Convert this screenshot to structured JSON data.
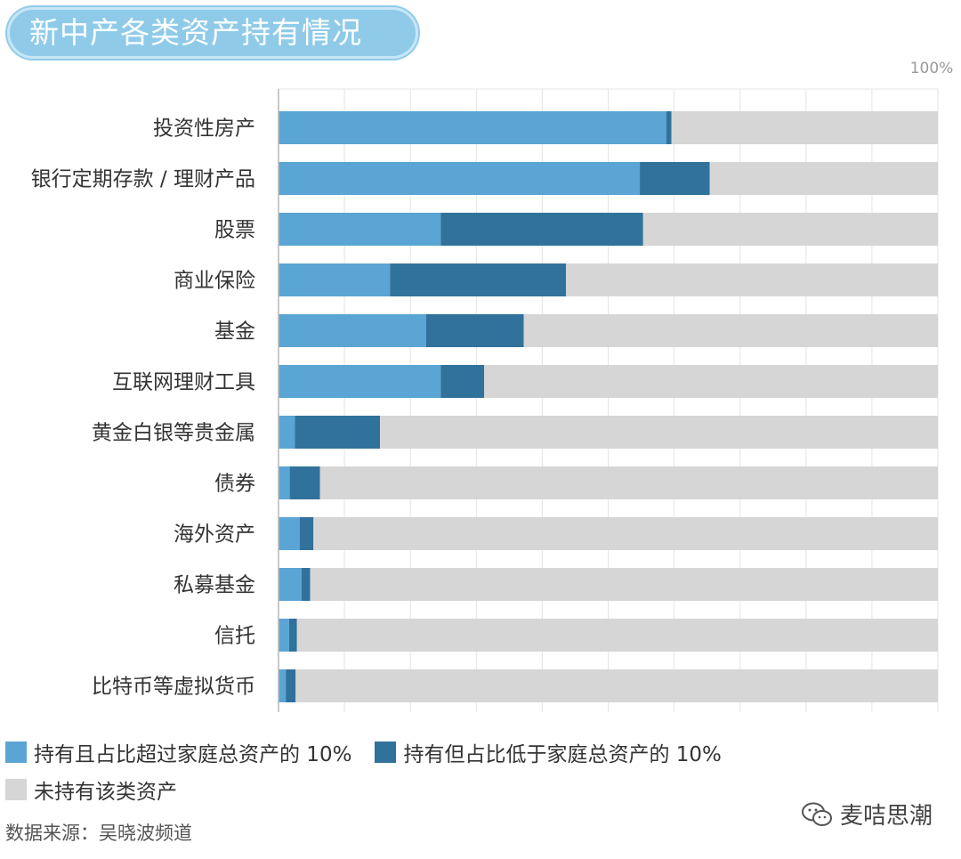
{
  "header": {
    "title": "新中产各类资产持有情况"
  },
  "chart_data": {
    "type": "bar",
    "orientation": "horizontal",
    "stacked": true,
    "xlim": [
      0,
      100
    ],
    "x_tick_label": "100%",
    "grid": true,
    "legend_position": "bottom",
    "categories": [
      "投资性房产",
      "银行定期存款 / 理财产品",
      "股票",
      "商业保险",
      "基金",
      "互联网理财工具",
      "黄金白银等贵金属",
      "债券",
      "海外资产",
      "私募基金",
      "信托",
      "比特币等虚拟货币"
    ],
    "series": [
      {
        "name": "持有且占比超过家庭总资产的 10%",
        "color": "#5aa5d3",
        "values": [
          58.8,
          54.8,
          24.6,
          16.9,
          22.4,
          24.6,
          2.5,
          1.7,
          3.2,
          3.5,
          1.6,
          1.1
        ]
      },
      {
        "name": "持有但占比低于家庭总资产的 10%",
        "color": "#31729c",
        "values": [
          0.8,
          10.6,
          30.7,
          26.7,
          14.8,
          6.6,
          12.9,
          4.6,
          2.1,
          1.3,
          1.2,
          1.5
        ]
      },
      {
        "name": "未持有该类资产",
        "color": "#d6d6d6",
        "values": [
          40.4,
          34.6,
          44.7,
          56.4,
          62.8,
          68.8,
          84.6,
          93.7,
          94.7,
          95.2,
          97.2,
          97.4
        ]
      }
    ]
  },
  "footer": {
    "source": "数据来源：吴晓波频道",
    "watermark": "麦咭思潮"
  }
}
